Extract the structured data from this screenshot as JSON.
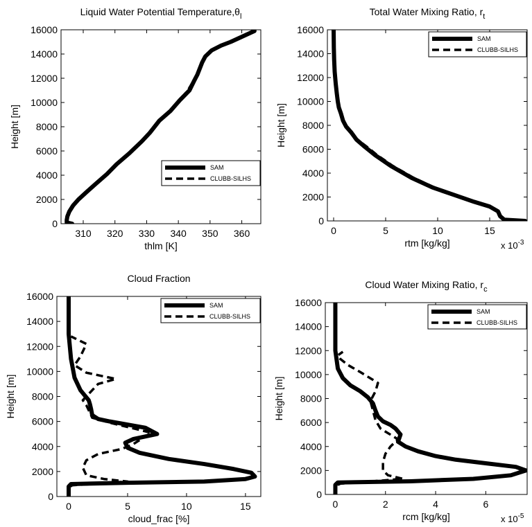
{
  "chart_data": [
    {
      "type": "line",
      "title": "Liquid Water Potential Temperature,θ",
      "title_sub": "l",
      "xlabel": "thlm [K]",
      "ylabel": "Height [m]",
      "xlim": [
        303,
        366
      ],
      "ylim": [
        0,
        16000
      ],
      "xticks": [
        310,
        320,
        330,
        340,
        350,
        360
      ],
      "yticks": [
        0,
        2000,
        4000,
        6000,
        8000,
        10000,
        12000,
        14000,
        16000
      ],
      "x_exponent": "",
      "grid": false,
      "legend_position": "center-right",
      "series": [
        {
          "name": "SAM",
          "style": "solid",
          "x": [
            306.5,
            304.8,
            304.8,
            305.0,
            305.6,
            306.8,
            308.5,
            311.0,
            314.0,
            317.5,
            320.5,
            324.5,
            328.5,
            331.0,
            334.0,
            337.5,
            340.5,
            343.5,
            345.0,
            346.0,
            347.5,
            348.5,
            350.5,
            353.5,
            356.5,
            359.0,
            361.5,
            364.0
          ],
          "y": [
            0,
            100,
            300,
            600,
            1000,
            1500,
            2000,
            2600,
            3300,
            4100,
            4900,
            5800,
            6800,
            7500,
            8500,
            9300,
            10200,
            11000,
            11800,
            12300,
            13300,
            13800,
            14300,
            14700,
            15000,
            15300,
            15600,
            15900
          ]
        },
        {
          "name": "CLUBB-SILHS",
          "style": "dashed",
          "x": [
            306.5,
            304.8,
            304.8,
            305.0,
            305.6,
            306.8,
            308.5,
            311.0,
            314.0,
            317.5,
            320.5,
            324.5,
            328.5,
            331.0,
            334.0,
            337.5,
            340.5,
            343.0,
            344.8,
            346.0,
            347.5,
            348.5,
            350.5,
            353.5,
            356.5,
            359.0,
            361.5,
            364.0
          ],
          "y": [
            0,
            100,
            300,
            600,
            1000,
            1500,
            2000,
            2600,
            3300,
            4100,
            4900,
            5800,
            6800,
            7500,
            8500,
            9300,
            10200,
            11000,
            11800,
            12300,
            13300,
            13800,
            14300,
            14700,
            15000,
            15300,
            15600,
            15900
          ]
        }
      ]
    },
    {
      "type": "line",
      "title": "Total Water Mixing Ratio, r",
      "title_sub": "t",
      "xlabel": "rtm [kg/kg]",
      "ylabel": "Height [m]",
      "xlim": [
        -0.0006,
        0.0186
      ],
      "ylim": [
        0,
        16000
      ],
      "xticks": [
        0,
        0.005,
        0.01,
        0.015
      ],
      "xticklabels": [
        "0",
        "5",
        "10",
        "15"
      ],
      "yticks": [
        0,
        2000,
        4000,
        6000,
        8000,
        10000,
        12000,
        14000,
        16000
      ],
      "x_exponent": "x 10",
      "x_exponent_power": "-3",
      "grid": false,
      "legend_position": "top-right",
      "series": [
        {
          "name": "SAM",
          "style": "solid",
          "x": [
            0.0184,
            0.0164,
            0.016,
            0.0158,
            0.015,
            0.0135,
            0.0115,
            0.0095,
            0.0075,
            0.0055,
            0.004,
            0.003,
            0.0022,
            0.0017,
            0.0012,
            0.0009,
            0.0007,
            0.0005,
            0.0004,
            0.0003,
            0.0002,
            0.0001,
            5e-05,
            2e-05,
            0.0
          ],
          "y": [
            0,
            100,
            400,
            800,
            1200,
            1600,
            2200,
            2800,
            3600,
            4600,
            5500,
            6200,
            6800,
            7400,
            7900,
            8400,
            9000,
            9500,
            10000,
            10700,
            11500,
            12500,
            13500,
            14500,
            16000
          ]
        },
        {
          "name": "CLUBB-SILHS",
          "style": "dashed",
          "x": [
            0.0184,
            0.0164,
            0.016,
            0.0158,
            0.015,
            0.0135,
            0.0117,
            0.0097,
            0.0077,
            0.0057,
            0.0042,
            0.0032,
            0.0023,
            0.0017,
            0.0012,
            0.0009,
            0.0007,
            0.0005,
            0.0004,
            0.0003,
            0.0002,
            0.0001,
            5e-05,
            2e-05,
            0.0
          ],
          "y": [
            0,
            100,
            400,
            800,
            1200,
            1600,
            2200,
            2800,
            3600,
            4600,
            5500,
            6200,
            6800,
            7400,
            7900,
            8400,
            9000,
            9500,
            10000,
            10700,
            11500,
            12500,
            13500,
            14500,
            16000
          ]
        }
      ]
    },
    {
      "type": "line",
      "title": "Cloud Fraction",
      "title_sub": "",
      "xlabel": "cloud_frac [%]",
      "ylabel": "Height [m]",
      "xlim": [
        -1,
        16.3
      ],
      "ylim": [
        0,
        16000
      ],
      "xticks": [
        0,
        5,
        10,
        15
      ],
      "yticks": [
        0,
        2000,
        4000,
        6000,
        8000,
        10000,
        12000,
        14000,
        16000
      ],
      "x_exponent": "",
      "grid": false,
      "legend_position": "top-right",
      "series": [
        {
          "name": "SAM",
          "style": "solid",
          "x": [
            0,
            0,
            0.2,
            5.0,
            11.5,
            15.0,
            15.8,
            15.5,
            14.0,
            11.5,
            8.5,
            6.0,
            5.0,
            4.8,
            5.5,
            7.5,
            6.5,
            3.5,
            2.5,
            2.0,
            1.9,
            1.8,
            1.7,
            1.0,
            0.5,
            0.2,
            0,
            0
          ],
          "y": [
            0,
            800,
            1000,
            1100,
            1200,
            1400,
            1600,
            1900,
            2200,
            2600,
            3000,
            3500,
            3900,
            4300,
            4600,
            5000,
            5500,
            6000,
            6200,
            6500,
            7000,
            7400,
            7700,
            8500,
            9500,
            11000,
            13000,
            16000
          ]
        },
        {
          "name": "CLUBB-SILHS",
          "style": "dashed",
          "x": [
            0,
            0,
            0.3,
            2.0,
            5.0,
            3.0,
            1.5,
            1.2,
            1.5,
            2.5,
            4.5,
            5.5,
            7.0,
            3.5,
            2.0,
            1.8,
            1.5,
            1.2,
            2.5,
            4.0,
            1.5,
            0.5,
            1.0,
            1.5,
            0.2
          ],
          "y": [
            0,
            700,
            900,
            1000,
            1200,
            1400,
            1700,
            2300,
            2900,
            3400,
            3800,
            4200,
            5100,
            5900,
            6300,
            6700,
            7300,
            7700,
            9000,
            9400,
            9900,
            10500,
            11200,
            12200,
            12800
          ]
        }
      ]
    },
    {
      "type": "line",
      "title": "Cloud Water Mixing Ratio, r",
      "title_sub": "c",
      "xlabel": "rcm [kg/kg]",
      "ylabel": "Height [m]",
      "xlim": [
        -4e-06,
        7.65e-05
      ],
      "ylim": [
        0,
        16000
      ],
      "xticks": [
        0,
        2e-05,
        4e-05,
        6e-05
      ],
      "xticklabels": [
        "0",
        "2",
        "4",
        "6"
      ],
      "yticks": [
        0,
        2000,
        4000,
        6000,
        8000,
        10000,
        12000,
        14000,
        16000
      ],
      "x_exponent": "x 10",
      "x_exponent_power": "-5",
      "grid": false,
      "legend_position": "top-right",
      "series": [
        {
          "name": "SAM",
          "style": "solid",
          "x": [
            0,
            0,
            1e-06,
            3e-05,
            5.5e-05,
            7e-05,
            7.6e-05,
            7.2e-05,
            6e-05,
            4.8e-05,
            4e-05,
            3.3e-05,
            2.8e-05,
            2.5e-05,
            2.6e-05,
            2.4e-05,
            2.2e-05,
            1.9e-05,
            1.7e-05,
            1.6e-05,
            1.5e-05,
            1.3e-05,
            1e-05,
            6e-06,
            3e-06,
            1e-06,
            0,
            0
          ],
          "y": [
            0,
            800,
            1000,
            1100,
            1300,
            1600,
            2000,
            2300,
            2600,
            2900,
            3200,
            3600,
            4000,
            4400,
            5000,
            5500,
            5800,
            6100,
            6500,
            7000,
            7600,
            8100,
            8600,
            9100,
            9700,
            10500,
            12000,
            16000
          ]
        },
        {
          "name": "CLUBB-SILHS",
          "style": "dashed",
          "x": [
            0,
            0,
            2e-06,
            1.5e-05,
            2.7e-05,
            2.1e-05,
            1.9e-05,
            1.9e-05,
            2e-05,
            2.2e-05,
            2.5e-05,
            1.8e-05,
            1.6e-05,
            1.5e-05,
            1.4e-05,
            1.6e-05,
            1.7e-05,
            1e-05,
            5e-06,
            2e-06,
            1e-06,
            3e-06
          ],
          "y": [
            0,
            700,
            900,
            1100,
            1300,
            1600,
            2000,
            2700,
            3400,
            4000,
            4600,
            5500,
            6200,
            7000,
            7800,
            8600,
            9300,
            10200,
            10800,
            11300,
            11600,
            11900
          ]
        }
      ]
    }
  ]
}
